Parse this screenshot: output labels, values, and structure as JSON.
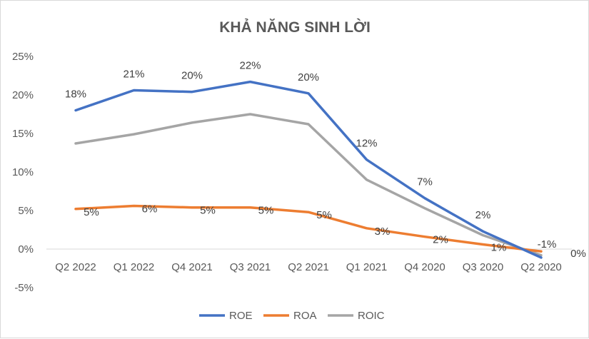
{
  "chart_data": {
    "type": "line",
    "title": "KHẢ NĂNG SINH LỜI",
    "xlabel": "",
    "ylabel": "",
    "categories": [
      "Q2 2022",
      "Q1 2022",
      "Q4 2021",
      "Q3 2021",
      "Q2 2021",
      "Q1 2021",
      "Q4 2020",
      "Q3 2020",
      "Q2 2020"
    ],
    "y_ticks": [
      "25%",
      "20%",
      "15%",
      "10%",
      "5%",
      "0%",
      "-5%"
    ],
    "ylim": [
      -5,
      25
    ],
    "grid": false,
    "legend_position": "bottom",
    "series": [
      {
        "name": "ROE",
        "color": "#4472c4",
        "values": [
          18.0,
          20.6,
          20.4,
          21.7,
          20.2,
          11.6,
          6.6,
          2.3,
          -1.1
        ],
        "labels": [
          "18%",
          "21%",
          "20%",
          "22%",
          "20%",
          "12%",
          "7%",
          "2%",
          "-1%"
        ]
      },
      {
        "name": "ROA",
        "color": "#ed7d31",
        "values": [
          5.2,
          5.6,
          5.4,
          5.4,
          4.8,
          2.7,
          1.6,
          0.6,
          -0.3
        ],
        "labels": [
          "5%",
          "6%",
          "5%",
          "5%",
          "5%",
          "3%",
          "2%",
          "1%",
          "0%"
        ]
      },
      {
        "name": "ROIC",
        "color": "#a5a5a5",
        "values": [
          13.7,
          14.9,
          16.4,
          17.5,
          16.2,
          9.0,
          5.3,
          1.8,
          -0.8
        ],
        "labels": []
      }
    ]
  }
}
